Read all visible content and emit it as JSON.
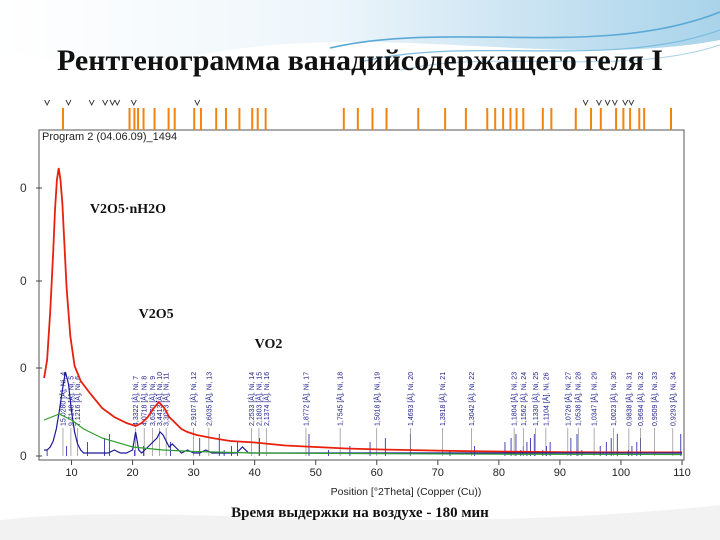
{
  "slide": {
    "title": "Рентгенограмма ванадийсодержащего геля I",
    "caption": "Время выдержки на воздухе - 180 мин"
  },
  "chart_data": {
    "type": "line",
    "header_label": "Program 2 (04.06.09)_1494",
    "xlabel": "Position [°2Theta] (Copper (Cu))",
    "xlim": [
      5,
      110
    ],
    "xticks": [
      "10",
      "20",
      "30",
      "40",
      "50",
      "60",
      "70",
      "80",
      "90",
      "100",
      "110"
    ],
    "ylim": [
      0,
      1
    ],
    "grid": false,
    "annotations": [
      {
        "text": "V2O5·nH2O",
        "x": 13,
        "y": 0.81
      },
      {
        "text": "V2O5",
        "x": 21,
        "y": 0.46
      },
      {
        "text": "VO2",
        "x": 40,
        "y": 0.36
      }
    ],
    "series": [
      {
        "color": "#e8200c",
        "x": [
          5.5,
          6.0,
          6.5,
          7.0,
          7.3,
          7.6,
          7.9,
          8.2,
          8.5,
          8.8,
          9.2,
          9.8,
          10.5,
          11.5,
          13,
          15,
          17,
          19,
          20.5,
          21.5,
          22.5,
          23.5,
          24.3,
          25.2,
          26.0,
          27.0,
          28.0,
          29.0,
          30.5,
          33,
          36,
          40,
          45,
          50,
          55,
          60,
          65,
          70,
          75,
          80,
          90,
          100,
          110
        ],
        "y": [
          0.26,
          0.32,
          0.48,
          0.68,
          0.82,
          0.92,
          0.96,
          0.92,
          0.84,
          0.72,
          0.56,
          0.4,
          0.3,
          0.25,
          0.21,
          0.16,
          0.13,
          0.11,
          0.1,
          0.11,
          0.13,
          0.16,
          0.18,
          0.16,
          0.13,
          0.11,
          0.09,
          0.08,
          0.07,
          0.06,
          0.05,
          0.045,
          0.035,
          0.03,
          0.025,
          0.022,
          0.02,
          0.018,
          0.016,
          0.015,
          0.013,
          0.012,
          0.012
        ]
      },
      {
        "color": "#1a1a99",
        "x": [
          5.5,
          6.0,
          6.5,
          7.0,
          7.5,
          8.0,
          8.5,
          9.0,
          9.5,
          10.0,
          10.5,
          11.0,
          11.5,
          12.0,
          13.0,
          14.5,
          16.0,
          17.0,
          18.0,
          19.0,
          20.0,
          20.5,
          21.0,
          21.5,
          22.0,
          23.0,
          24.0,
          24.5,
          25.0,
          25.5,
          26.0,
          26.5,
          27.0,
          27.5,
          28.0,
          29.0,
          30.0,
          31.0,
          32.0,
          33.0,
          34.0,
          35.0,
          36.0,
          37.0,
          38.0,
          39.0,
          40.0,
          45,
          50,
          60,
          70,
          80,
          90,
          100,
          110
        ],
        "y": [
          0.02,
          0.02,
          0.03,
          0.05,
          0.09,
          0.15,
          0.22,
          0.28,
          0.24,
          0.15,
          0.08,
          0.04,
          0.02,
          0.01,
          0.01,
          0.01,
          0.01,
          0.02,
          0.01,
          0.01,
          0.02,
          0.08,
          0.02,
          0.01,
          0.02,
          0.04,
          0.06,
          0.08,
          0.07,
          0.05,
          0.03,
          0.04,
          0.03,
          0.02,
          0.01,
          0.02,
          0.01,
          0.01,
          0.02,
          0.01,
          0.01,
          0.01,
          0.01,
          0.01,
          0.03,
          0.01,
          0.01,
          0.01,
          0.01,
          0.01,
          0.01,
          0.01,
          0.01,
          0.01,
          0.01
        ]
      },
      {
        "color": "#2e9e2e",
        "x": [
          5.5,
          8,
          10,
          12,
          15,
          20,
          25,
          30,
          40,
          60,
          80,
          110
        ],
        "y": [
          0.12,
          0.14,
          0.12,
          0.09,
          0.06,
          0.03,
          0.02,
          0.015,
          0.01,
          0.008,
          0.006,
          0.005
        ]
      }
    ],
    "reference_peaks_top": [
      6.0,
      9.2,
      12.6,
      15.4,
      16.2,
      20.3,
      21.8,
      26.2,
      31.0,
      34.2,
      35.0,
      36.2,
      37.2,
      40.8,
      48.9,
      52.1,
      55.6,
      58.9,
      61.4,
      65.5,
      72.0,
      76.0,
      81.0,
      82.0,
      82.8,
      83.6,
      84.0,
      84.6,
      85.2,
      85.8,
      87.2,
      87.8,
      88.4,
      91.8,
      92.8,
      93.6,
      96.6,
      97.6,
      98.4,
      99.4,
      101.2,
      101.8,
      102.6,
      103.2,
      109.8
    ],
    "reference_ticks_top": [
      6.0,
      9.5,
      13.3,
      15.5,
      16.7,
      17.5,
      20.2,
      30.6,
      94.2,
      96.4,
      97.8,
      99.0,
      100.7,
      101.7
    ],
    "orange_ticks": [
      8.6,
      19.5,
      20.3,
      20.9,
      21.8,
      23.6,
      25.9,
      26.9,
      30.1,
      31.2,
      33.7,
      35.3,
      37.5,
      39.6,
      40.5,
      41.8,
      54.6,
      56.9,
      59.3,
      61.6,
      66.8,
      71.2,
      74.6,
      78.1,
      79.4,
      80.7,
      81.9,
      82.9,
      84.0,
      87.2,
      88.6,
      92.6,
      95.1,
      96.7,
      99.2,
      100.4,
      101.5,
      103.0,
      103.8,
      108.2
    ],
    "peak_labels": [
      {
        "x": 8.6,
        "text": "15,0280 [Å], Ni, 4"
      },
      {
        "x": 9.9,
        "text": "9,7148 [Å], Ni, 5"
      },
      {
        "x": 11.0,
        "text": "7,1216 [Å], Ni, 6"
      },
      {
        "x": 20.5,
        "text": "4,3322 [Å], Ni, 7"
      },
      {
        "x": 21.9,
        "text": "4,0718 [Å], Ni, 8"
      },
      {
        "x": 23.3,
        "text": "3,6370 [Å], Ni, 9"
      },
      {
        "x": 24.4,
        "text": "3,4413 [Å], Ni, 10"
      },
      {
        "x": 25.5,
        "text": "3,3073 [Å], Ni, 11"
      },
      {
        "x": 30.0,
        "text": "2,9107 [Å], Ni, 12"
      },
      {
        "x": 32.5,
        "text": "2,6035 [Å], Ni, 13"
      },
      {
        "x": 39.5,
        "text": "2,2533 [Å], Ni, 14"
      },
      {
        "x": 40.7,
        "text": "2,1803 [Å], Ni, 15"
      },
      {
        "x": 41.9,
        "text": "2,1374 [Å], Ni, 16"
      },
      {
        "x": 48.4,
        "text": "1,8772 [Å], Ni, 17"
      },
      {
        "x": 54.0,
        "text": "1,7545 [Å], Ni, 18"
      },
      {
        "x": 60.0,
        "text": "1,5018 [Å], Ni, 19"
      },
      {
        "x": 65.5,
        "text": "1,4693 [Å], Ni, 20"
      },
      {
        "x": 70.8,
        "text": "1,3918 [Å], Ni, 21"
      },
      {
        "x": 75.5,
        "text": "1,3042 [Å], Ni, 22"
      },
      {
        "x": 82.5,
        "text": "1,1804 [Å], Ni, 23"
      },
      {
        "x": 84.0,
        "text": "1,1562 [Å], Ni, 24"
      },
      {
        "x": 86.0,
        "text": "1,1330 [Å], Ni, 25"
      },
      {
        "x": 87.7,
        "text": "1,1104 [Å], Ni, 26"
      },
      {
        "x": 91.3,
        "text": "1,0726 [Å], Ni, 27"
      },
      {
        "x": 93.0,
        "text": "1,0538 [Å], Ni, 28"
      },
      {
        "x": 95.6,
        "text": "1,0347 [Å], Ni, 29"
      },
      {
        "x": 98.8,
        "text": "1,0023 [Å], Ni, 30"
      },
      {
        "x": 101.3,
        "text": "0,9838 [Å], Ni, 31"
      },
      {
        "x": 103.2,
        "text": "0,9694 [Å], Ni, 32"
      },
      {
        "x": 105.5,
        "text": "0,9509 [Å], Ni, 33"
      },
      {
        "x": 108.5,
        "text": "0,9293 [Å], Ni, 34"
      }
    ]
  }
}
